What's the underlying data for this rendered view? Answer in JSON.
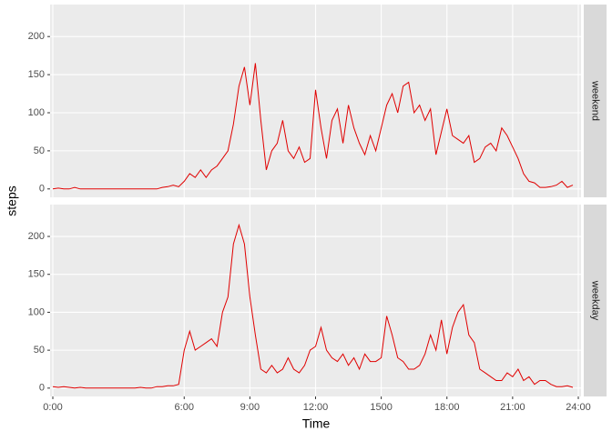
{
  "chart_data": {
    "type": "line",
    "x_label": "Time",
    "y_label": "steps",
    "color": "#e00000",
    "grid": true,
    "x": [
      0,
      0.25,
      0.5,
      0.75,
      1,
      1.25,
      1.5,
      1.75,
      2,
      2.25,
      2.5,
      2.75,
      3,
      3.25,
      3.5,
      3.75,
      4,
      4.25,
      4.5,
      4.75,
      5,
      5.25,
      5.5,
      5.75,
      6,
      6.25,
      6.5,
      6.75,
      7,
      7.25,
      7.5,
      7.75,
      8,
      8.25,
      8.5,
      8.75,
      9,
      9.25,
      9.5,
      9.75,
      10,
      10.25,
      10.5,
      10.75,
      11,
      11.25,
      11.5,
      11.75,
      12,
      12.25,
      12.5,
      12.75,
      13,
      13.25,
      13.5,
      13.75,
      14,
      14.25,
      14.5,
      14.75,
      15,
      15.25,
      15.5,
      15.75,
      16,
      16.25,
      16.5,
      16.75,
      17,
      17.25,
      17.5,
      17.75,
      18,
      18.25,
      18.5,
      18.75,
      19,
      19.25,
      19.5,
      19.75,
      20,
      20.25,
      20.5,
      20.75,
      21,
      21.25,
      21.5,
      21.75,
      22,
      22.25,
      22.5,
      22.75,
      23,
      23.25,
      23.5,
      23.75
    ],
    "xlim": [
      -0.125,
      24.125
    ],
    "xticks": [
      {
        "value": 0,
        "label": "0:00"
      },
      {
        "value": 6,
        "label": "6:00"
      },
      {
        "value": 9,
        "label": "9:00"
      },
      {
        "value": 12,
        "label": "12:00"
      },
      {
        "value": 15,
        "label": "1500"
      },
      {
        "value": 18,
        "label": "18:00"
      },
      {
        "value": 21,
        "label": "21:00"
      },
      {
        "value": 24,
        "label": "24:00"
      }
    ],
    "ylim": [
      -11,
      242
    ],
    "yticks": [
      0,
      50,
      100,
      150,
      200
    ],
    "series": [
      {
        "name": "weekend",
        "values": [
          0,
          1,
          0,
          0,
          2,
          0,
          0,
          0,
          0,
          0,
          0,
          0,
          0,
          0,
          0,
          0,
          0,
          0,
          0,
          0,
          2,
          3,
          5,
          3,
          10,
          20,
          15,
          25,
          15,
          25,
          30,
          40,
          50,
          85,
          135,
          160,
          110,
          165,
          90,
          25,
          50,
          60,
          90,
          50,
          40,
          55,
          35,
          40,
          130,
          80,
          40,
          90,
          105,
          60,
          110,
          80,
          60,
          45,
          70,
          50,
          80,
          110,
          125,
          100,
          135,
          140,
          100,
          110,
          90,
          105,
          45,
          75,
          105,
          70,
          65,
          60,
          70,
          35,
          40,
          55,
          60,
          50,
          80,
          70,
          55,
          40,
          20,
          10,
          8,
          2,
          2,
          3,
          5,
          10,
          2,
          5
        ]
      },
      {
        "name": "weekday",
        "values": [
          2,
          1,
          2,
          1,
          0,
          1,
          0,
          0,
          0,
          0,
          0,
          0,
          0,
          0,
          0,
          0,
          1,
          0,
          0,
          2,
          2,
          3,
          3,
          5,
          50,
          75,
          50,
          55,
          60,
          65,
          55,
          100,
          120,
          190,
          215,
          190,
          120,
          70,
          25,
          20,
          30,
          20,
          25,
          40,
          25,
          20,
          30,
          50,
          55,
          80,
          50,
          40,
          35,
          45,
          30,
          40,
          25,
          45,
          35,
          35,
          40,
          95,
          70,
          40,
          35,
          25,
          25,
          30,
          45,
          70,
          50,
          90,
          45,
          80,
          100,
          110,
          70,
          60,
          25,
          20,
          15,
          10,
          10,
          20,
          15,
          25,
          10,
          15,
          5,
          10,
          10,
          5,
          2,
          2,
          3,
          1
        ]
      }
    ]
  }
}
